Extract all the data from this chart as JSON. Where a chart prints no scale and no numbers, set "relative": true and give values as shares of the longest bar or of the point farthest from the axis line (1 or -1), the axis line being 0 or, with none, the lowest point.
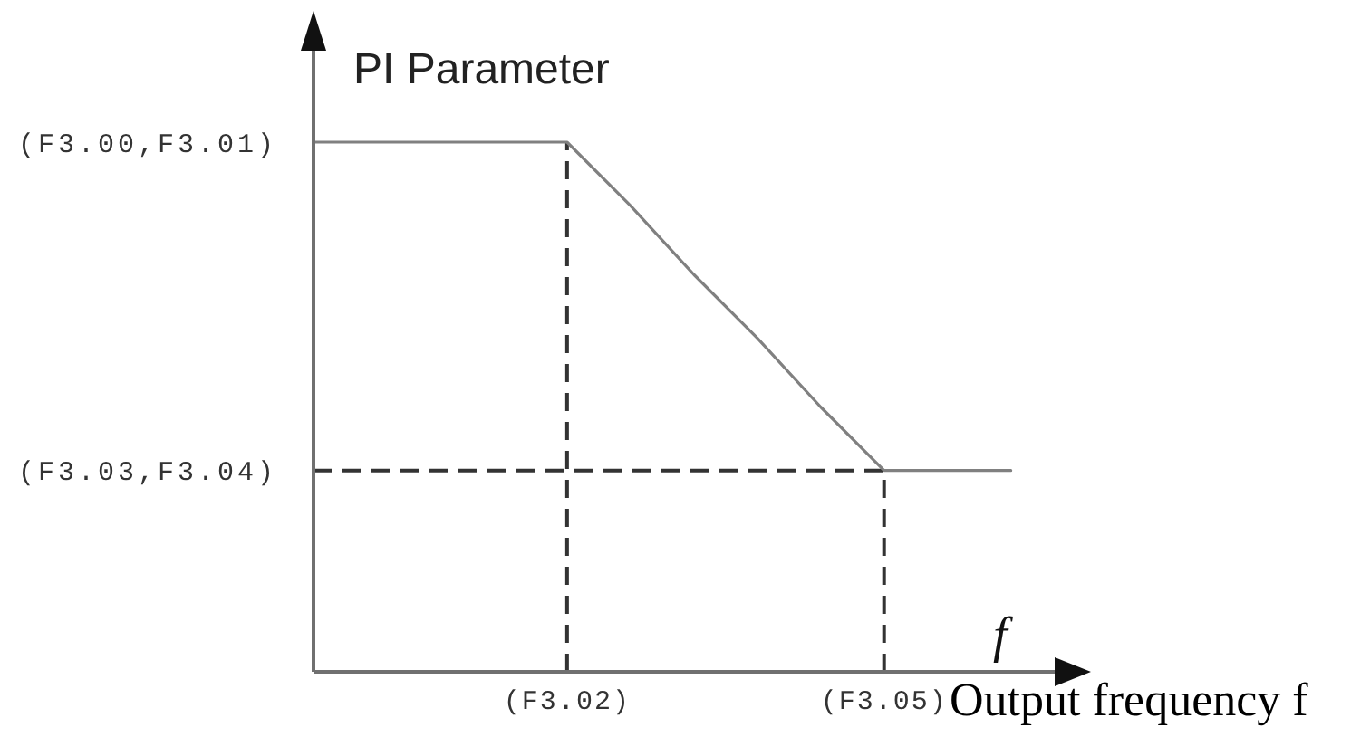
{
  "chart_data": {
    "type": "line",
    "relative": true,
    "ylabel": "PI Parameter",
    "xlabel": "f",
    "annotations": [
      "(F3.00,F3.01)",
      "Output frequency f"
    ],
    "categories": [
      null,
      null,
      null,
      null,
      "(F3.02)",
      null,
      null,
      null,
      null,
      "(F3.05)",
      null,
      null
    ],
    "series": [
      {
        "color": "#808080",
        "values": [
          1,
          1,
          1,
          1,
          1,
          0.88,
          0.75,
          0.63,
          0.5,
          0.38,
          0.38,
          0.38
        ]
      }
    ],
    "ref_lines": [
      {
        "axis": "x",
        "value": "(F3.02)",
        "color": "#333333",
        "line_style": "dashed"
      },
      {
        "axis": "x",
        "value": "(F3.05)",
        "color": "#333333",
        "line_style": "dashed"
      },
      {
        "axis": "y",
        "value": 0.38,
        "label": "(F3.03,F3.04)",
        "color": "#333333",
        "line_style": "dashed"
      }
    ],
    "line_style": "solid"
  }
}
